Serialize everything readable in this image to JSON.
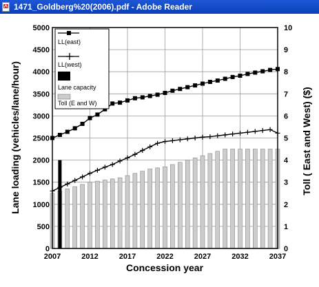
{
  "window": {
    "title": "1471_Goldberg%20(2006).pdf - Adobe Reader",
    "icon": "pdf-icon",
    "accent_color": "#0a3fb8"
  },
  "chart_data": {
    "type": "bar",
    "title": "",
    "xlabel": "Concession year",
    "ylabel_left": "Lane loading (vehicles/lane/hour)",
    "ylabel_right": "Toll ( East and West) ($)",
    "xlim": [
      2007,
      2037
    ],
    "ylim_left": [
      0,
      5000
    ],
    "ylim_right": [
      0,
      10
    ],
    "x_ticks": [
      "2007",
      "2012",
      "2017",
      "2022",
      "2027",
      "2032",
      "2037"
    ],
    "y_ticks_left": [
      "0",
      "500",
      "1000",
      "1500",
      "2000",
      "2500",
      "3000",
      "3500",
      "4000",
      "4500",
      "5000"
    ],
    "y_ticks_right": [
      "0",
      "1",
      "2",
      "3",
      "4",
      "5",
      "6",
      "7",
      "8",
      "9",
      "10"
    ],
    "grid": true,
    "legend_position": "top-left",
    "legend": [
      "LL(east)",
      "LL(west)",
      "Lane capacity",
      "Toll (E and W)"
    ],
    "x": [
      2007,
      2008,
      2009,
      2010,
      2011,
      2012,
      2013,
      2014,
      2015,
      2016,
      2017,
      2018,
      2019,
      2020,
      2021,
      2022,
      2023,
      2024,
      2025,
      2026,
      2027,
      2028,
      2029,
      2030,
      2031,
      2032,
      2033,
      2034,
      2035,
      2036,
      2037
    ],
    "series": [
      {
        "name": "LL(east)",
        "axis": "left",
        "marker": "square",
        "values": [
          2500,
          2570,
          2640,
          2720,
          2820,
          2950,
          3030,
          3150,
          3280,
          3300,
          3350,
          3400,
          3420,
          3450,
          3480,
          3520,
          3570,
          3610,
          3650,
          3690,
          3730,
          3770,
          3800,
          3840,
          3880,
          3910,
          3950,
          3980,
          4010,
          4040,
          4060
        ]
      },
      {
        "name": "LL(west)",
        "axis": "left",
        "marker": "plus",
        "values": [
          1300,
          1380,
          1460,
          1540,
          1620,
          1700,
          1770,
          1840,
          1900,
          1980,
          2050,
          2130,
          2220,
          2300,
          2380,
          2420,
          2440,
          2460,
          2480,
          2500,
          2520,
          2530,
          2550,
          2570,
          2590,
          2610,
          2630,
          2650,
          2670,
          2690,
          2610
        ]
      },
      {
        "name": "Lane capacity",
        "axis": "left",
        "type": "bar",
        "x": [
          2008
        ],
        "values": [
          2000
        ]
      },
      {
        "name": "Toll (E and W)",
        "axis": "right",
        "type": "bar",
        "values": [
          2.5,
          2.6,
          2.7,
          2.8,
          2.9,
          3.0,
          3.05,
          3.1,
          3.15,
          3.2,
          3.3,
          3.4,
          3.5,
          3.6,
          3.65,
          3.7,
          3.8,
          3.9,
          4.0,
          4.1,
          4.2,
          4.3,
          4.4,
          4.5,
          4.5,
          4.5,
          4.5,
          4.5,
          4.5,
          4.5,
          4.5
        ]
      }
    ]
  }
}
